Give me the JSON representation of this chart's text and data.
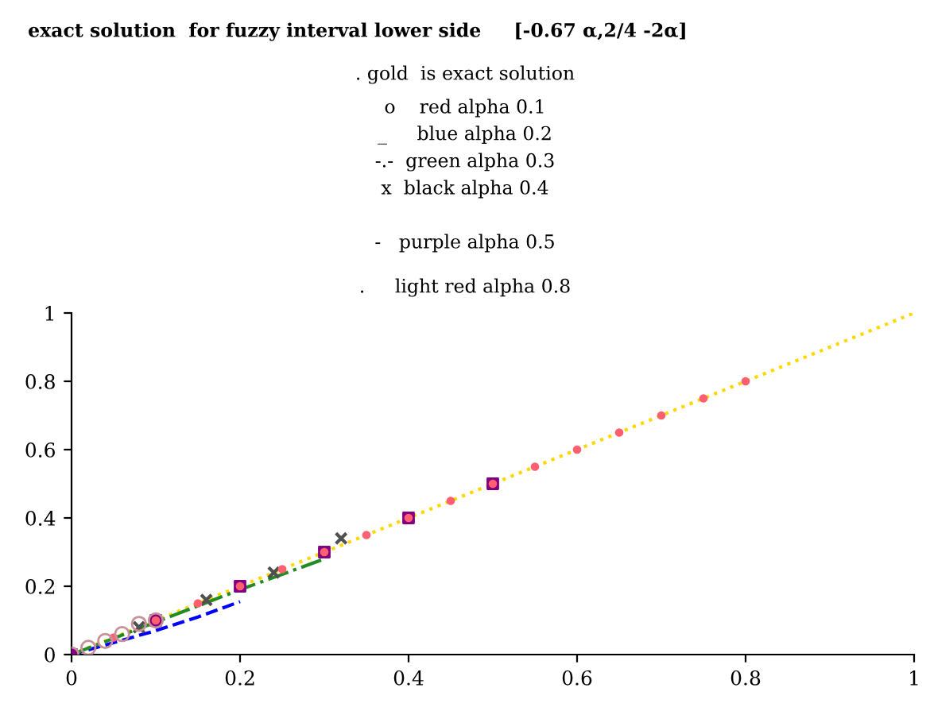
{
  "chart_data": {
    "type": "line",
    "title": "exact solution  for fuzzy interval lower side     [-0.67 α,2/4 -2α]",
    "annotations": [
      ". gold  is exact solution",
      "o    red alpha 0.1",
      "_     blue alpha 0.2",
      "-.-  green alpha 0.3",
      "x  black alpha 0.4",
      "-   purple alpha 0.5",
      ".     light red alpha 0.8"
    ],
    "series": [
      {
        "color": "#ffd700",
        "line_style": "dotted",
        "x": [
          0,
          0.5,
          1
        ],
        "values": [
          0,
          0.5,
          1
        ]
      },
      {
        "type": "scatter",
        "color": "#c89098",
        "marker": "circle",
        "x": [
          0,
          0.02,
          0.04,
          0.06,
          0.08,
          0.1
        ],
        "values": [
          0,
          0.02,
          0.04,
          0.06,
          0.09,
          0.1
        ]
      },
      {
        "color": "#0000ff",
        "line_style": "dashed",
        "x": [
          0,
          0.05,
          0.1,
          0.15,
          0.2
        ],
        "values": [
          0,
          0.035,
          0.07,
          0.11,
          0.155
        ]
      },
      {
        "color": "#228b22",
        "line_style": "dashdot",
        "x": [
          0,
          0.1,
          0.2,
          0.3
        ],
        "values": [
          0,
          0.095,
          0.19,
          0.28
        ]
      },
      {
        "type": "scatter",
        "color": "#505050",
        "marker": "cross",
        "x": [
          0.08,
          0.16,
          0.24,
          0.32
        ],
        "values": [
          0.08,
          0.16,
          0.24,
          0.34
        ]
      },
      {
        "type": "scatter",
        "color": "#800080",
        "marker": "square",
        "x": [
          0,
          0.1,
          0.2,
          0.3,
          0.4,
          0.5
        ],
        "values": [
          0,
          0.1,
          0.2,
          0.3,
          0.4,
          0.5
        ]
      },
      {
        "type": "scatter",
        "color": "#ff6070",
        "marker": "circle",
        "x": [
          0.05,
          0.1,
          0.15,
          0.2,
          0.25,
          0.3,
          0.35,
          0.4,
          0.45,
          0.5,
          0.55,
          0.6,
          0.65,
          0.7,
          0.75,
          0.8
        ],
        "values": [
          0.05,
          0.1,
          0.15,
          0.2,
          0.25,
          0.3,
          0.35,
          0.4,
          0.45,
          0.5,
          0.55,
          0.6,
          0.65,
          0.7,
          0.75,
          0.8
        ]
      }
    ],
    "xlim": [
      0,
      1
    ],
    "ylim": [
      0,
      1
    ],
    "xticks": [
      0,
      0.2,
      0.4,
      0.6,
      0.8,
      1
    ],
    "yticks": [
      0,
      0.2,
      0.4,
      0.6,
      0.8,
      1
    ],
    "grid": false
  }
}
